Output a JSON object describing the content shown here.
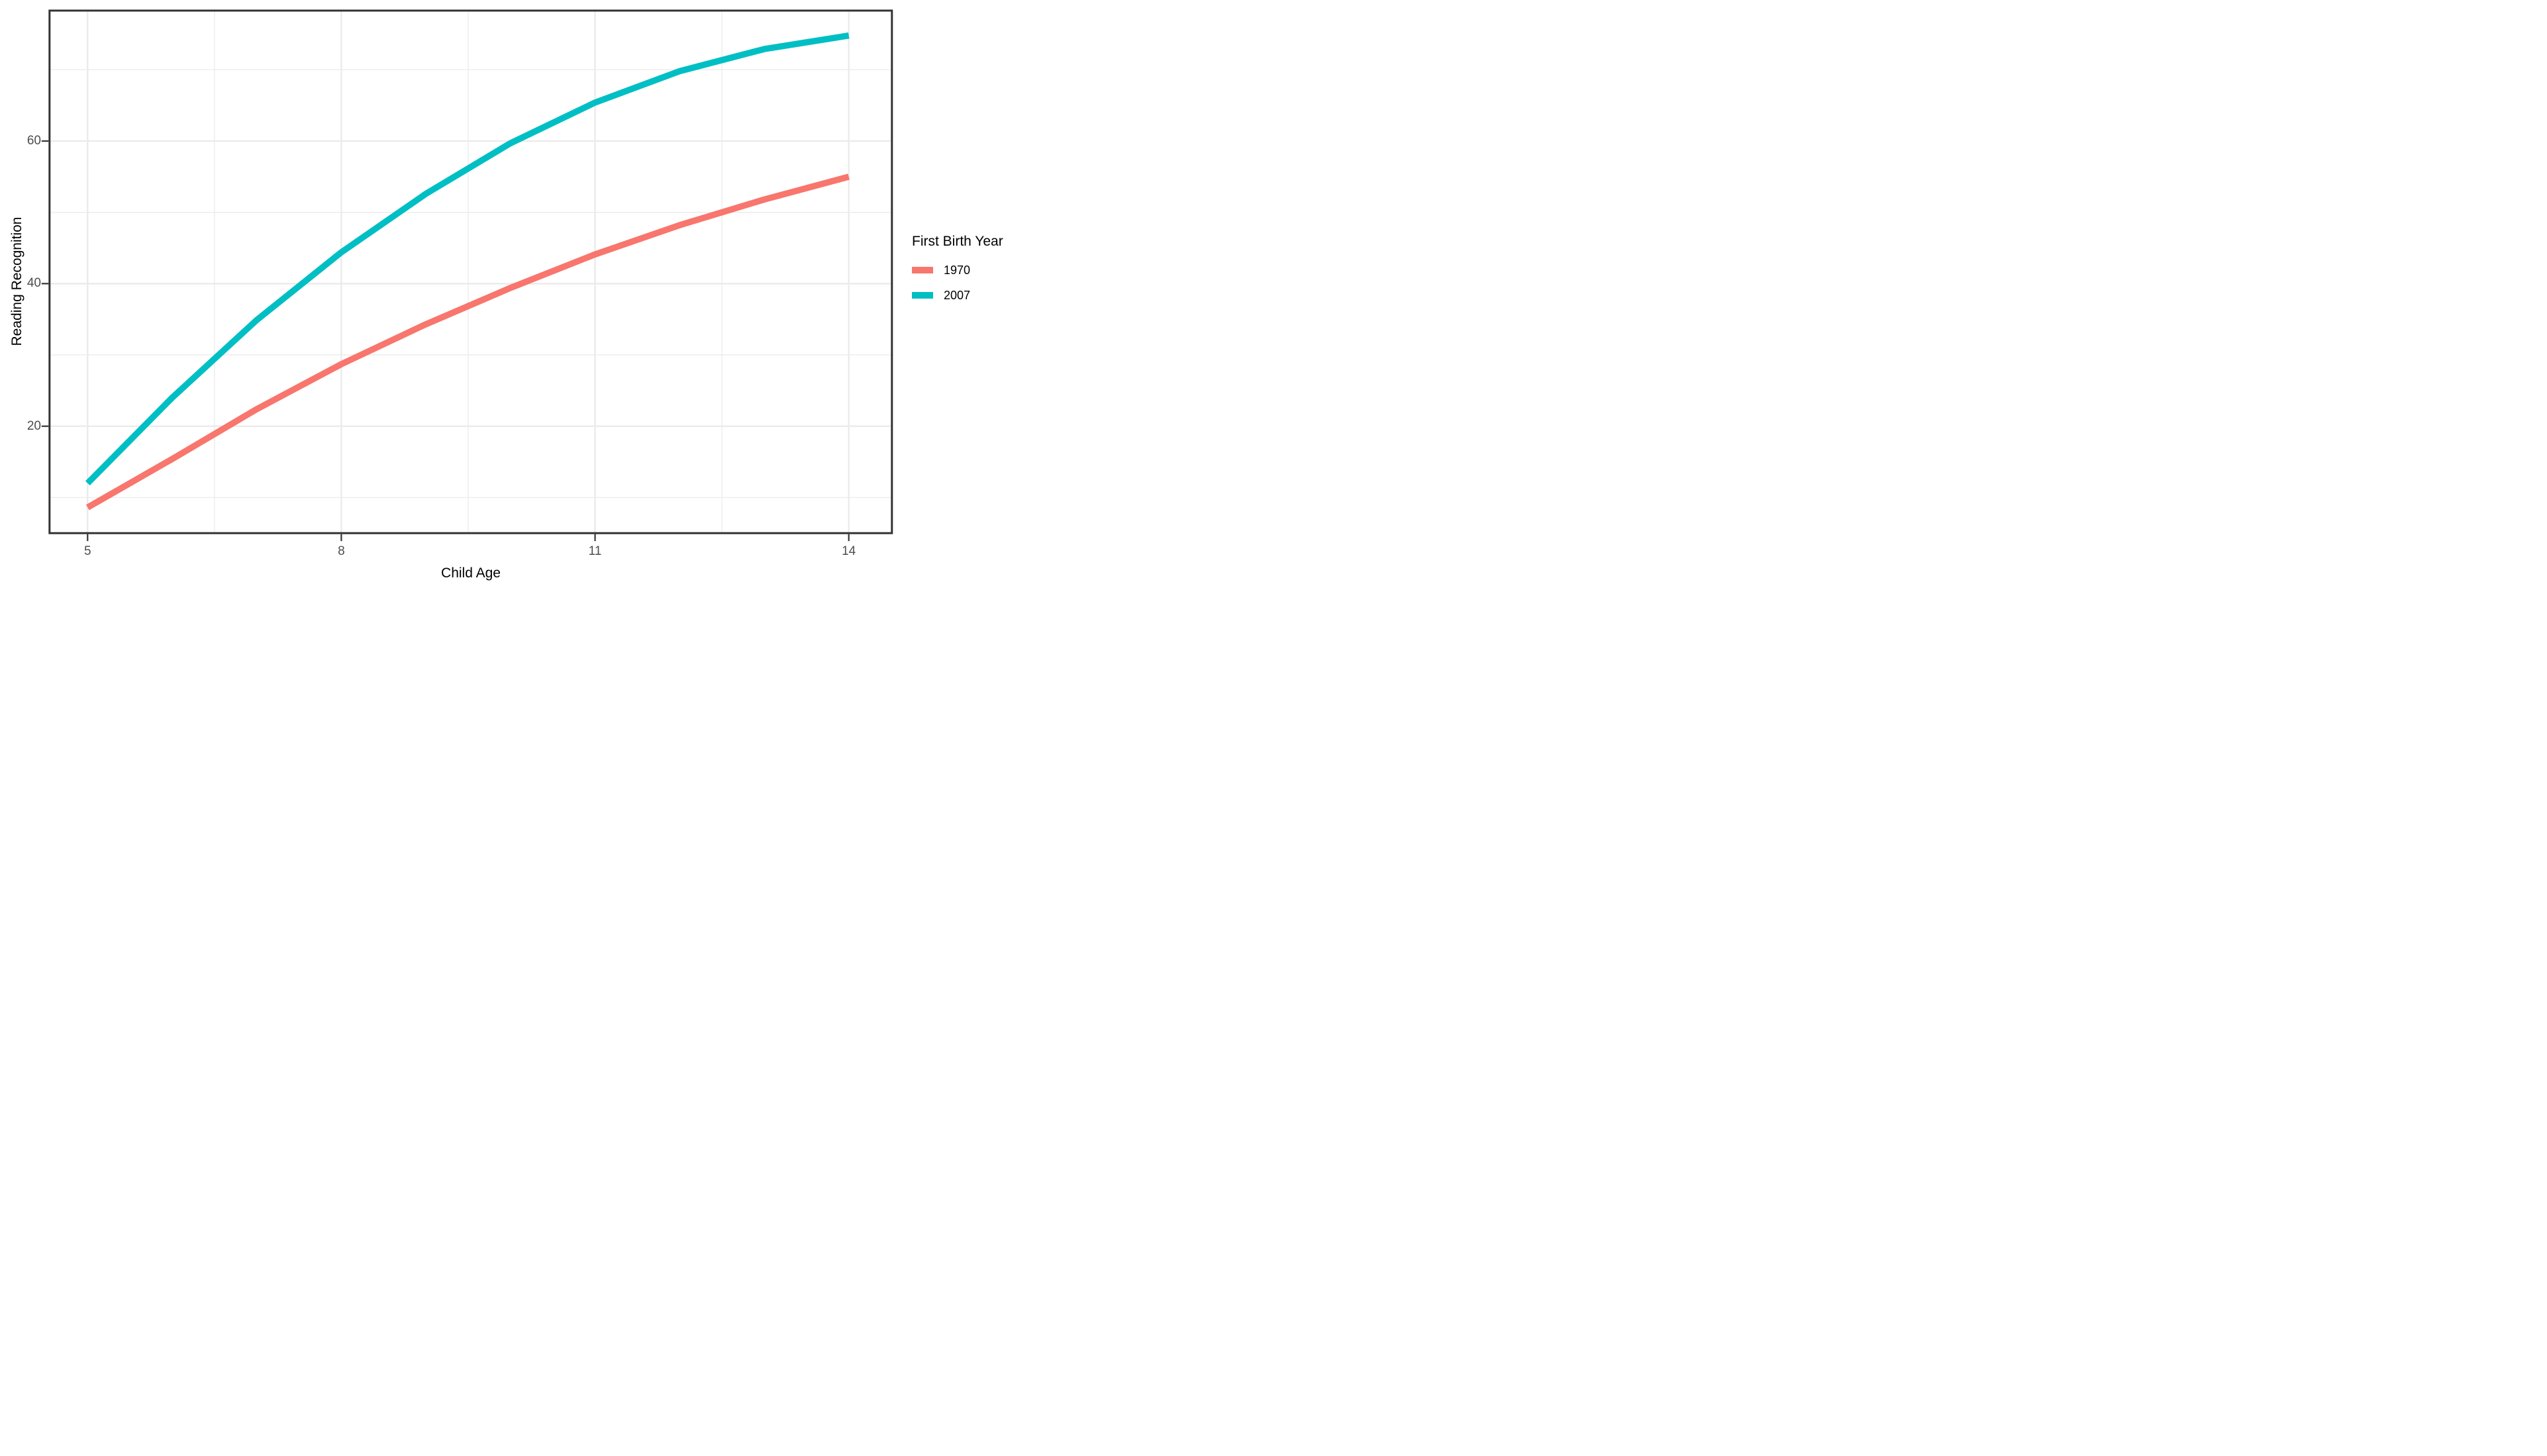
{
  "chart_data": {
    "type": "line",
    "title": "",
    "xlabel": "Child Age",
    "ylabel": "Reading Recognition",
    "x": [
      5,
      6,
      7,
      8,
      9,
      10,
      11,
      12,
      13,
      14
    ],
    "series": [
      {
        "name": "1970",
        "color": "#F8766D",
        "values": [
          8.6,
          15.4,
          22.4,
          28.7,
          34.3,
          39.4,
          44.1,
          48.2,
          51.8,
          55.0
        ]
      },
      {
        "name": "2007",
        "color": "#00BFC4",
        "values": [
          12.0,
          24.0,
          34.9,
          44.4,
          52.6,
          59.7,
          65.4,
          69.8,
          72.9,
          74.8
        ]
      }
    ],
    "x_ticks": [
      5,
      8,
      11,
      14
    ],
    "y_ticks": [
      20,
      40,
      60
    ],
    "x_minor": [
      6.5,
      9.5,
      12.5
    ],
    "y_minor": [
      10,
      30,
      50,
      70
    ],
    "xlim": [
      4.55,
      14.51
    ],
    "ylim": [
      5.0,
      78.3
    ],
    "legend_title": "First Birth Year",
    "legend_position": "right",
    "grid": true
  },
  "styles": {
    "background": "#FFFFFF",
    "grid_color": "#EBEBEB",
    "panel_border": "#333333",
    "tick_color": "#333333",
    "tick_label_color": "#4D4D4D",
    "text_color": "#000000"
  }
}
